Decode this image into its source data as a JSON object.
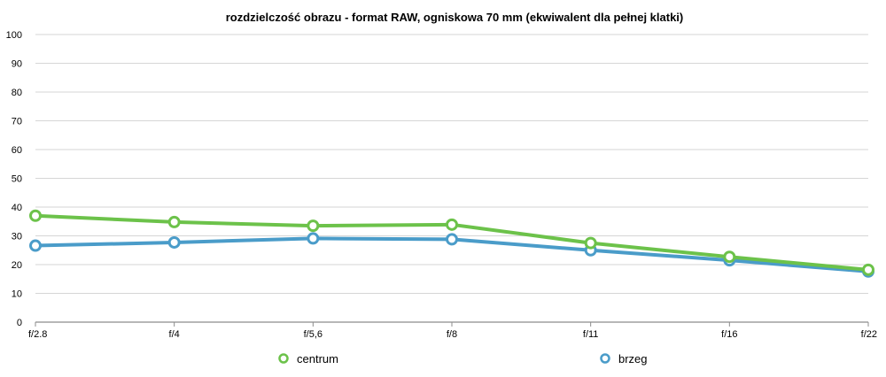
{
  "chart_data": {
    "type": "line",
    "title": "rozdzielczość obrazu - format RAW, ogniskowa 70 mm (ekwiwalent dla pełnej klatki)",
    "xlabel": "",
    "ylabel": "",
    "categories": [
      "f/2.8",
      "f/4",
      "f/5,6",
      "f/8",
      "f/11",
      "f/16",
      "f/22"
    ],
    "ylim": [
      0,
      100
    ],
    "yticks": [
      0,
      10,
      20,
      30,
      40,
      50,
      60,
      70,
      80,
      90,
      100
    ],
    "grid": true,
    "legend_position": "bottom",
    "series": [
      {
        "name": "centrum",
        "color": "#6cc24a",
        "values": [
          37,
          34.8,
          33.5,
          33.9,
          27.5,
          22.7,
          18.2
        ]
      },
      {
        "name": "brzeg",
        "color": "#4a9cc9",
        "values": [
          26.6,
          27.7,
          29.1,
          28.8,
          25,
          21.5,
          17.6
        ]
      }
    ]
  }
}
